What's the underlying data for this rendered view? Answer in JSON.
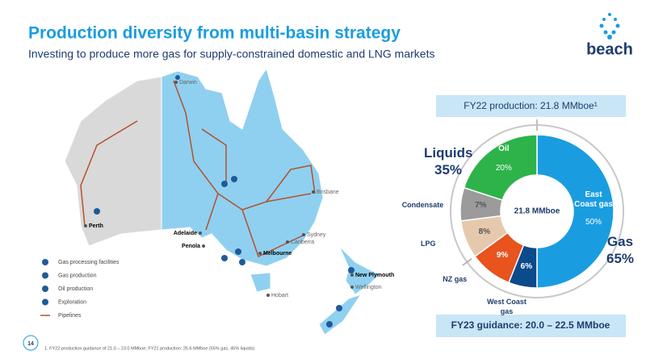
{
  "header": {
    "title": "Production diversity from multi-basin strategy",
    "subtitle": "Investing to produce more gas for supply-constrained domestic and LNG markets"
  },
  "logo": "beach",
  "page_number": "14",
  "footnote": "1. FY22 production guidance of 21.0 – 23.0 MMboe; FY21 production: 25.6 MMboe (55% gas, 45% liquids)",
  "map": {
    "cities": [
      "Darwin",
      "Brisbane",
      "Perth",
      "Adelaide",
      "Penola",
      "Melbourne",
      "Sydney",
      "Canberra",
      "Hobart",
      "New Plymouth",
      "Wellington"
    ],
    "legend": [
      "Gas processing facilities",
      "Gas production",
      "Oil production",
      "Exploration",
      "Pipelines"
    ]
  },
  "chart_data": {
    "type": "donut",
    "title": "FY22 production: 21.8 MMboe¹",
    "center_label": "21.8 MMboe",
    "categories": [
      "East Coast gas",
      "West Coast gas",
      "NZ gas",
      "LPG",
      "Condensate",
      "Oil"
    ],
    "values": [
      50,
      6,
      9,
      8,
      7,
      20
    ],
    "value_labels": [
      "50%",
      "6%",
      "9%",
      "8%",
      "7%",
      "20%"
    ],
    "colors": [
      "#1a9de0",
      "#0b4a8b",
      "#e8531e",
      "#e6c9ad",
      "#9b9b9b",
      "#2db34a"
    ],
    "groups": {
      "names": [
        "Gas",
        "Liquids"
      ],
      "values": [
        65,
        35
      ],
      "value_labels": [
        "65%",
        "35%"
      ]
    },
    "footer": "FY23 guidance: 20.0 – 22.5 MMboe"
  }
}
